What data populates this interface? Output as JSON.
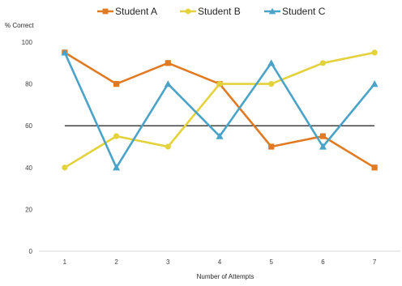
{
  "chart_data": {
    "type": "line",
    "title": "",
    "xlabel": "Number of Attempts",
    "ylabel": "% Correct",
    "categories": [
      "1",
      "2",
      "3",
      "4",
      "5",
      "6",
      "7"
    ],
    "ylim": [
      0,
      100
    ],
    "yticks": [
      "0",
      "20",
      "40",
      "60",
      "80",
      "100"
    ],
    "grid": false,
    "legend_position": "top",
    "reference_line": {
      "value": 60,
      "color": "#000000"
    },
    "series": [
      {
        "name": "Student A",
        "color": "#E07B24",
        "marker": "square",
        "values": [
          95,
          80,
          90,
          80,
          50,
          55,
          40
        ]
      },
      {
        "name": "Student B",
        "color": "#E3D23B",
        "marker": "circle",
        "values": [
          40,
          55,
          50,
          80,
          80,
          90,
          95
        ]
      },
      {
        "name": "Student C",
        "color": "#4BA3C7",
        "marker": "triangle",
        "values": [
          95,
          40,
          80,
          55,
          90,
          50,
          80
        ]
      }
    ]
  }
}
